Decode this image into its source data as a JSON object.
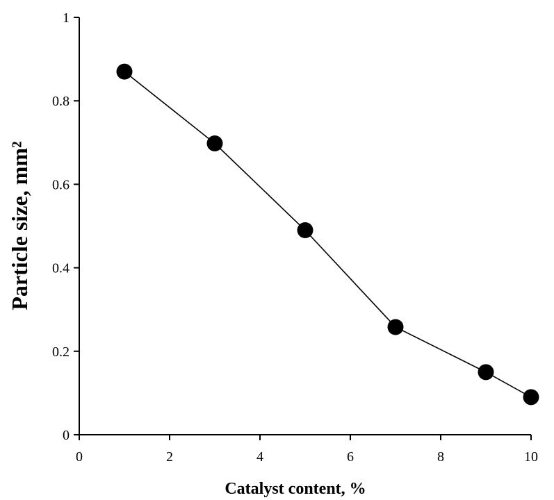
{
  "chart_data": {
    "type": "line",
    "title": "",
    "xlabel": "Catalyst content, %",
    "ylabel": "Particle size, mm²",
    "xlim": [
      0,
      10
    ],
    "ylim": [
      0,
      1
    ],
    "x_ticks": [
      "0",
      "2",
      "4",
      "6",
      "8",
      "10"
    ],
    "y_ticks": [
      "0",
      "0.2",
      "0.4",
      "0.6",
      "0.8",
      "1"
    ],
    "grid": false,
    "legend": "none",
    "series": [
      {
        "x": [
          1,
          3,
          5,
          7,
          9,
          10
        ],
        "y": [
          0.87,
          0.698,
          0.49,
          0.258,
          0.15,
          0.09
        ],
        "color": "#000000",
        "marker": "filled-circle"
      }
    ]
  }
}
